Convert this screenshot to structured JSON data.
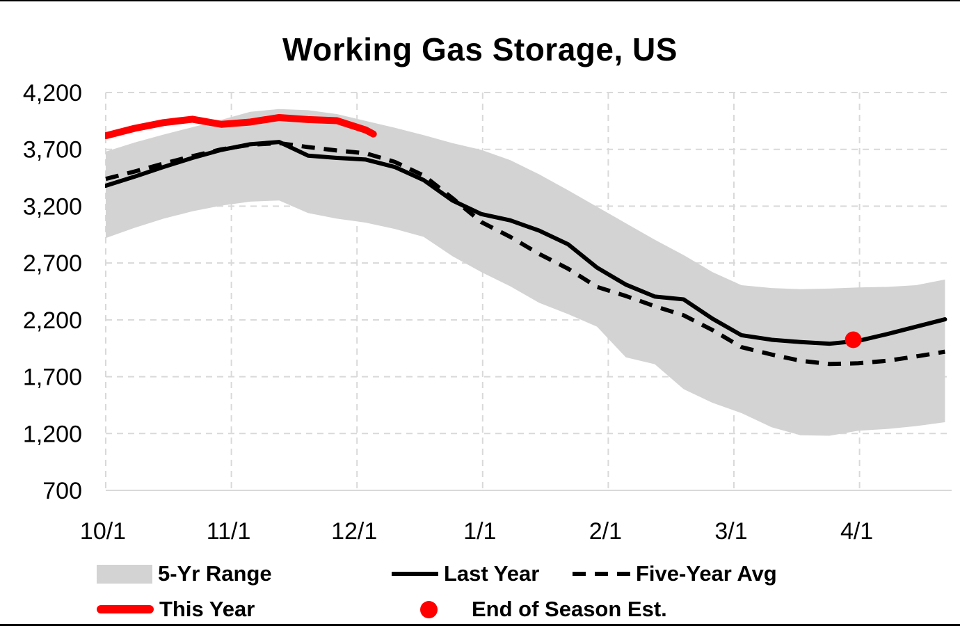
{
  "page": {
    "background": "#ffffff",
    "border_color": "#000000"
  },
  "chart_data": {
    "type": "line",
    "title": "Working Gas Storage, US",
    "xlabel": "",
    "ylabel": "",
    "ylim": [
      700,
      4200
    ],
    "y_tick_step": 500,
    "y_ticks": [
      4200,
      3700,
      3200,
      2700,
      2200,
      1700,
      1200,
      700
    ],
    "y_tick_labels": [
      "4,200",
      "3,700",
      "3,200",
      "2,700",
      "2,200",
      "1,700",
      "1,200",
      "700"
    ],
    "x_tick_labels": [
      "10/1",
      "11/1",
      "12/1",
      "1/1",
      "2/1",
      "3/1",
      "4/1"
    ],
    "x_tick_months": [
      0,
      1,
      2,
      3,
      4,
      5,
      6
    ],
    "xlim_months": [
      0,
      6.73
    ],
    "grid": {
      "shown": true,
      "style": "dashed",
      "color": "#d9d9d9"
    },
    "legend_position": "bottom",
    "weekly_dates": [
      "10/1",
      "10/8",
      "10/15",
      "10/22",
      "10/29",
      "11/5",
      "11/12",
      "11/19",
      "11/26",
      "12/3",
      "12/10",
      "12/17",
      "12/24",
      "12/31",
      "1/7",
      "1/14",
      "1/21",
      "1/28",
      "2/4",
      "2/11",
      "2/18",
      "2/25",
      "3/4",
      "3/11",
      "3/18",
      "3/25",
      "4/1",
      "4/8",
      "4/15",
      "4/22"
    ],
    "x_months_weekly": [
      0,
      0.23,
      0.46,
      0.69,
      0.92,
      1.15,
      1.38,
      1.61,
      1.84,
      2.07,
      2.3,
      2.53,
      2.76,
      2.99,
      3.22,
      3.45,
      3.68,
      3.91,
      4.14,
      4.37,
      4.6,
      4.83,
      5.06,
      5.3,
      5.53,
      5.76,
      5.99,
      6.22,
      6.45,
      6.68
    ],
    "band": {
      "name": "5-Yr Range",
      "color": "#d3d3d3",
      "top": [
        3680,
        3760,
        3830,
        3895,
        3960,
        4030,
        4055,
        4045,
        4010,
        3950,
        3890,
        3825,
        3755,
        3695,
        3605,
        3480,
        3340,
        3195,
        3050,
        2905,
        2770,
        2620,
        2505,
        2480,
        2470,
        2475,
        2485,
        2490,
        2505,
        2555
      ],
      "bottom": [
        2920,
        3010,
        3090,
        3155,
        3205,
        3240,
        3250,
        3140,
        3090,
        3055,
        3000,
        2930,
        2760,
        2620,
        2495,
        2350,
        2250,
        2140,
        1870,
        1810,
        1590,
        1470,
        1380,
        1255,
        1185,
        1180,
        1225,
        1240,
        1265,
        1300
      ]
    },
    "series": [
      {
        "name": "Last Year",
        "style": "solid",
        "color": "#000000",
        "width": 6,
        "values": [
          3380,
          3460,
          3545,
          3625,
          3695,
          3745,
          3765,
          3645,
          3625,
          3610,
          3545,
          3430,
          3250,
          3130,
          3075,
          2985,
          2865,
          2660,
          2510,
          2405,
          2380,
          2210,
          2065,
          2025,
          2005,
          1990,
          2015,
          2075,
          2140,
          2205
        ]
      },
      {
        "name": "Five-Year Avg",
        "style": "dashed",
        "color": "#000000",
        "width": 6,
        "values": [
          3440,
          3505,
          3575,
          3640,
          3700,
          3740,
          3755,
          3720,
          3690,
          3665,
          3590,
          3470,
          3270,
          3060,
          2930,
          2780,
          2650,
          2490,
          2410,
          2320,
          2240,
          2110,
          1960,
          1895,
          1840,
          1812,
          1818,
          1840,
          1878,
          1920
        ]
      },
      {
        "name": "This Year",
        "style": "solid",
        "color": "#ff0000",
        "width": 10,
        "x_months": [
          0,
          0.23,
          0.46,
          0.69,
          0.92,
          1.15,
          1.38,
          1.61,
          1.84,
          2.07,
          2.13
        ],
        "dates": [
          "10/1",
          "10/8",
          "10/15",
          "10/22",
          "10/29",
          "11/5",
          "11/12",
          "11/19",
          "11/26",
          "12/3",
          "12/5"
        ],
        "values": [
          3820,
          3885,
          3935,
          3965,
          3920,
          3940,
          3980,
          3962,
          3952,
          3870,
          3835
        ]
      }
    ],
    "point": {
      "name": "End of Season Est.",
      "color": "#ff0000",
      "x_month": 5.95,
      "value": 2025,
      "radius": 12
    },
    "legend": {
      "items": [
        {
          "label": "5-Yr Range",
          "swatch": "band",
          "color": "#d3d3d3"
        },
        {
          "label": "Last Year",
          "swatch": "solid-line",
          "color": "#000000"
        },
        {
          "label": "Five-Year Avg",
          "swatch": "dashed-line",
          "color": "#000000"
        },
        {
          "label": "This Year",
          "swatch": "thick-red-line",
          "color": "#ff0000"
        },
        {
          "label": "End of Season Est.",
          "swatch": "red-dot",
          "color": "#ff0000"
        }
      ]
    }
  }
}
